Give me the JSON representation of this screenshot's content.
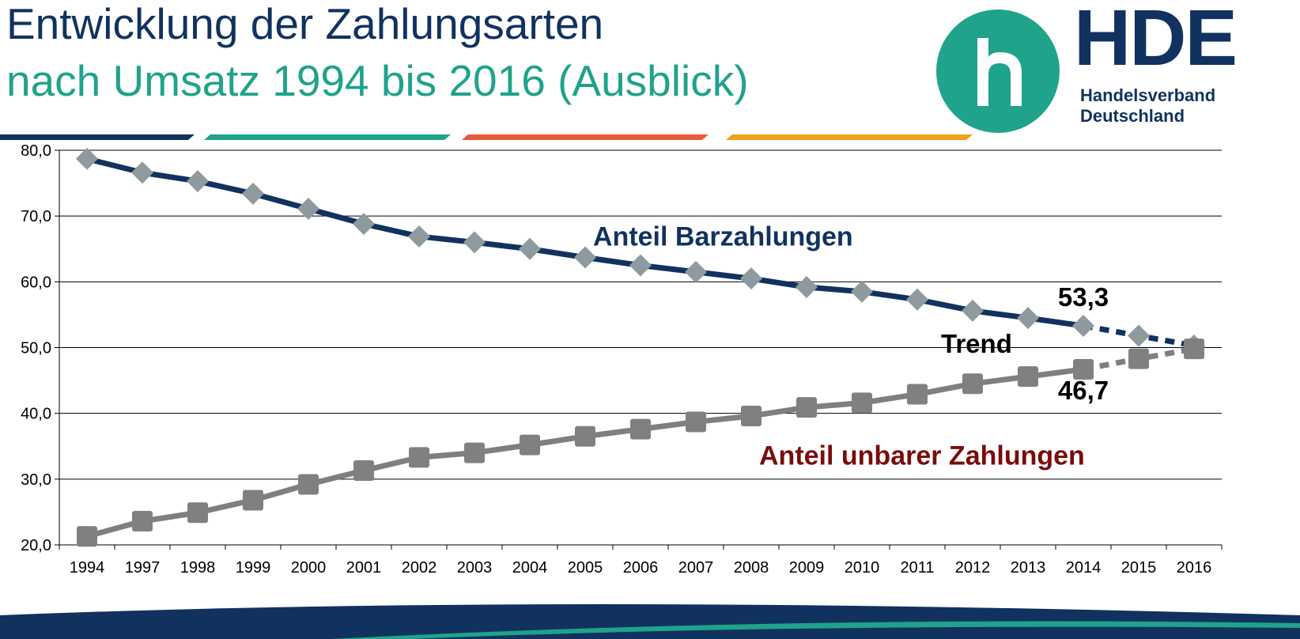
{
  "header": {
    "title_line1": "Entwicklung der Zahlungsarten",
    "title_line2": "nach Umsatz 1994 bis 2016 (Ausblick)"
  },
  "logo": {
    "wordmark": "HDE",
    "subtitle_line1": "Handelsverband",
    "subtitle_line2": "Deutschland"
  },
  "colors": {
    "navy": "#11325f",
    "teal": "#1fa38a",
    "orange_red": "#e85a3a",
    "orange": "#f0a21a",
    "marker_gray": "#8e9a9d",
    "line_gray": "#7f7f7f",
    "square_gray": "#808080",
    "label_darkred": "#7a0c0c"
  },
  "decor_stripes": [
    "navy",
    "teal",
    "orange_red",
    "orange"
  ],
  "chart_data": {
    "type": "line",
    "categories": [
      "1994",
      "1997",
      "1998",
      "1999",
      "2000",
      "2001",
      "2002",
      "2003",
      "2004",
      "2005",
      "2006",
      "2007",
      "2008",
      "2009",
      "2010",
      "2011",
      "2012",
      "2013",
      "2014",
      "2015",
      "2016"
    ],
    "ylim": [
      20,
      80
    ],
    "yticks": [
      "80,0",
      "70,0",
      "60,0",
      "50,0",
      "40,0",
      "30,0",
      "20,0"
    ],
    "grid": true,
    "trend_from_index": 18,
    "series": [
      {
        "name": "Anteil Barzahlungen",
        "marker": "diamond",
        "values": [
          78.7,
          76.6,
          75.3,
          73.4,
          71.1,
          68.8,
          66.9,
          66.0,
          65.0,
          63.7,
          62.5,
          61.5,
          60.5,
          59.2,
          58.5,
          57.3,
          55.6,
          54.5,
          53.3,
          51.8,
          50.3
        ]
      },
      {
        "name": "Anteil unbarer Zahlungen",
        "marker": "square",
        "values": [
          21.3,
          23.6,
          24.9,
          26.8,
          29.2,
          31.3,
          33.3,
          34.0,
          35.2,
          36.5,
          37.6,
          38.7,
          39.6,
          40.9,
          41.6,
          42.9,
          44.5,
          45.6,
          46.7,
          48.3,
          49.8
        ]
      }
    ],
    "annotations": [
      {
        "text": "Anteil Barzahlungen",
        "kind": "series_label",
        "x": "2005",
        "y": 65.5,
        "color": "navy"
      },
      {
        "text": "Anteil unbarer Zahlungen",
        "kind": "series_label",
        "x": "2008",
        "y": 32.2,
        "color": "label_darkred"
      },
      {
        "text": "53,3",
        "kind": "data_label",
        "x": "2014",
        "y": 56.3,
        "color": "#000000"
      },
      {
        "text": "46,7",
        "kind": "data_label",
        "x": "2014",
        "y": 42.1,
        "color": "#000000"
      },
      {
        "text": "Trend",
        "kind": "note",
        "x": "2013",
        "y": 49.2,
        "color": "#000000"
      }
    ]
  }
}
